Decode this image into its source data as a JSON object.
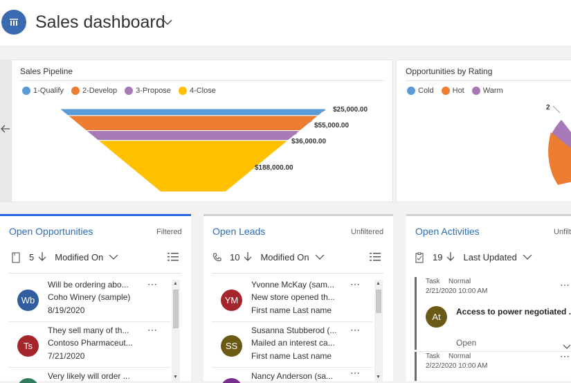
{
  "header": {
    "title": "Sales dashboard",
    "icon": "dashboard-icon",
    "accent": "#3a6bb0"
  },
  "pipeline": {
    "title": "Sales Pipeline",
    "legend": [
      {
        "label": "1-Qualify",
        "color": "#5b9bd5"
      },
      {
        "label": "2-Develop",
        "color": "#ed7d31"
      },
      {
        "label": "3-Propose",
        "color": "#a779b7"
      },
      {
        "label": "4-Close",
        "color": "#ffc000"
      }
    ]
  },
  "rating": {
    "title": "Opportunities by Rating",
    "legend": [
      {
        "label": "Cold",
        "color": "#5b9bd5"
      },
      {
        "label": "Hot",
        "color": "#ed7d31"
      },
      {
        "label": "Warm",
        "color": "#a779b7"
      }
    ],
    "data_label": "2"
  },
  "chart_data": [
    {
      "type": "funnel",
      "title": "Sales Pipeline",
      "categories": [
        "1-Qualify",
        "2-Develop",
        "3-Propose",
        "4-Close"
      ],
      "values": [
        25000,
        55000,
        36000,
        188000
      ],
      "value_labels": [
        "$25,000.00",
        "$55,000.00",
        "$36,000.00",
        "$188,000.00"
      ],
      "colors": [
        "#5b9bd5",
        "#ed7d31",
        "#a779b7",
        "#ffc000"
      ],
      "legend": "top-left"
    },
    {
      "type": "pie",
      "title": "Opportunities by Rating",
      "categories": [
        "Cold",
        "Hot",
        "Warm"
      ],
      "data_labels": [
        "2"
      ],
      "colors": [
        "#5b9bd5",
        "#ed7d31",
        "#a779b7"
      ],
      "legend": "top-left"
    }
  ],
  "opportunities": {
    "title": "Open Opportunities",
    "filter": "Filtered",
    "count": "5",
    "sort_field": "Modified On",
    "records": [
      {
        "initials": "Wb",
        "color": "#2f5d9e",
        "line1": "Will be ordering abo...",
        "line2": "Coho Winery (sample)",
        "line3": "8/19/2020"
      },
      {
        "initials": "Ts",
        "color": "#a4262c",
        "line1": "They sell many of th...",
        "line2": "Contoso Pharmaceut...",
        "line3": "7/21/2020"
      },
      {
        "initials": "",
        "color": "#2f7d5e",
        "line1": "Very likely will order ...",
        "line2": "",
        "line3": ""
      }
    ]
  },
  "leads": {
    "title": "Open Leads",
    "filter": "Unfiltered",
    "count": "10",
    "sort_field": "Modified On",
    "records": [
      {
        "initials": "YM",
        "color": "#a4262c",
        "line1": "Yvonne McKay (sam...",
        "line2": "New store opened th...",
        "line3": "First name Last name"
      },
      {
        "initials": "SS",
        "color": "#6b5a16",
        "line1": "Susanna Stubberod (...",
        "line2": "Mailed an interest ca...",
        "line3": "First name Last name"
      },
      {
        "initials": "",
        "color": "#7a2e8c",
        "line1": "Nancy Anderson (sa...",
        "line2": "",
        "line3": ""
      }
    ]
  },
  "activities": {
    "title": "Open Activities",
    "filter": "Unfilt",
    "count": "19",
    "sort_field": "Last Updated",
    "records": [
      {
        "type": "Task",
        "priority": "Normal",
        "datetime": "2/21/2020 10:00 AM",
        "initials": "At",
        "color": "#6b5a16",
        "subject": "Access to power negotiated ...",
        "status": "Open"
      },
      {
        "type": "Task",
        "priority": "Normal",
        "datetime": "2/22/2020 10:00 AM"
      }
    ]
  }
}
